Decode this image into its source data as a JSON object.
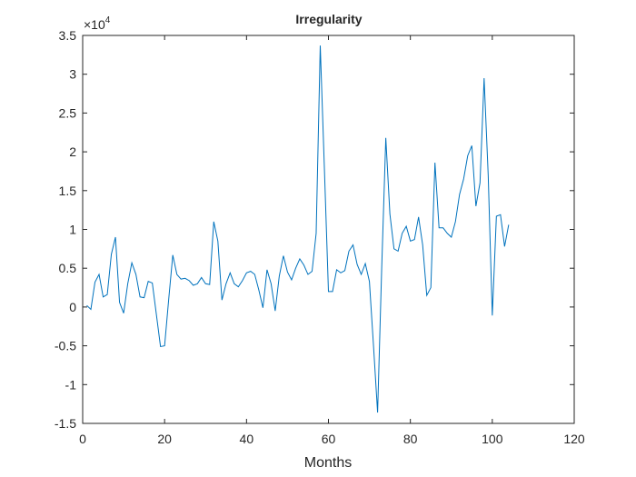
{
  "chart_data": {
    "type": "line",
    "title": "Irregularity",
    "xlabel": "Months",
    "y_multiplier_base": "×10",
    "y_multiplier_exponent": "4",
    "x": [
      1,
      2,
      3,
      4,
      5,
      6,
      7,
      8,
      9,
      10,
      11,
      12,
      13,
      14,
      15,
      16,
      17,
      18,
      19,
      20,
      21,
      22,
      23,
      24,
      25,
      26,
      27,
      28,
      29,
      30,
      31,
      32,
      33,
      34,
      35,
      36,
      37,
      38,
      39,
      40,
      41,
      42,
      43,
      44,
      45,
      46,
      47,
      48,
      49,
      50,
      51,
      52,
      53,
      54,
      55,
      56,
      57,
      58,
      59,
      60,
      61,
      62,
      63,
      64,
      65,
      66,
      67,
      68,
      69,
      70,
      71,
      72,
      73,
      74,
      75,
      76,
      77,
      78,
      79,
      80,
      81,
      82,
      83,
      84,
      85,
      86,
      87,
      88,
      89,
      90,
      91,
      92,
      93,
      94,
      95,
      96,
      97,
      98,
      99,
      100,
      101,
      102,
      103,
      104
    ],
    "series": [
      {
        "name": "Irregularity",
        "color": "#0072bd",
        "values": [
          0.02,
          -0.03,
          0.32,
          0.42,
          0.13,
          0.16,
          0.68,
          0.9,
          0.06,
          -0.08,
          0.3,
          0.57,
          0.42,
          0.13,
          0.12,
          0.33,
          0.31,
          -0.1,
          -0.51,
          -0.5,
          0.1,
          0.67,
          0.42,
          0.36,
          0.37,
          0.34,
          0.28,
          0.3,
          0.38,
          0.3,
          0.29,
          1.1,
          0.85,
          0.09,
          0.3,
          0.44,
          0.3,
          0.26,
          0.34,
          0.44,
          0.46,
          0.42,
          0.22,
          -0.01,
          0.48,
          0.3,
          -0.05,
          0.4,
          0.66,
          0.45,
          0.35,
          0.5,
          0.62,
          0.54,
          0.42,
          0.46,
          0.95,
          3.37,
          1.8,
          0.2,
          0.2,
          0.48,
          0.44,
          0.47,
          0.72,
          0.8,
          0.55,
          0.42,
          0.56,
          0.33,
          -0.5,
          -1.36,
          0.5,
          2.18,
          1.2,
          0.75,
          0.72,
          0.95,
          1.04,
          0.85,
          0.87,
          1.16,
          0.8,
          0.15,
          0.25,
          1.86,
          1.02,
          1.02,
          0.95,
          0.9,
          1.1,
          1.45,
          1.65,
          1.95,
          2.08,
          1.3,
          1.6,
          2.95,
          1.7,
          -0.11,
          1.17,
          1.19,
          0.78,
          1.06
        ]
      }
    ],
    "xlim": [
      0,
      120
    ],
    "xticks": [
      0,
      20,
      40,
      60,
      80,
      100,
      120
    ],
    "ylim": [
      -1.5,
      3.5
    ],
    "yticks": [
      -1.5,
      -1,
      -0.5,
      0,
      0.5,
      1,
      1.5,
      2,
      2.5,
      3,
      3.5
    ],
    "grid": false
  }
}
